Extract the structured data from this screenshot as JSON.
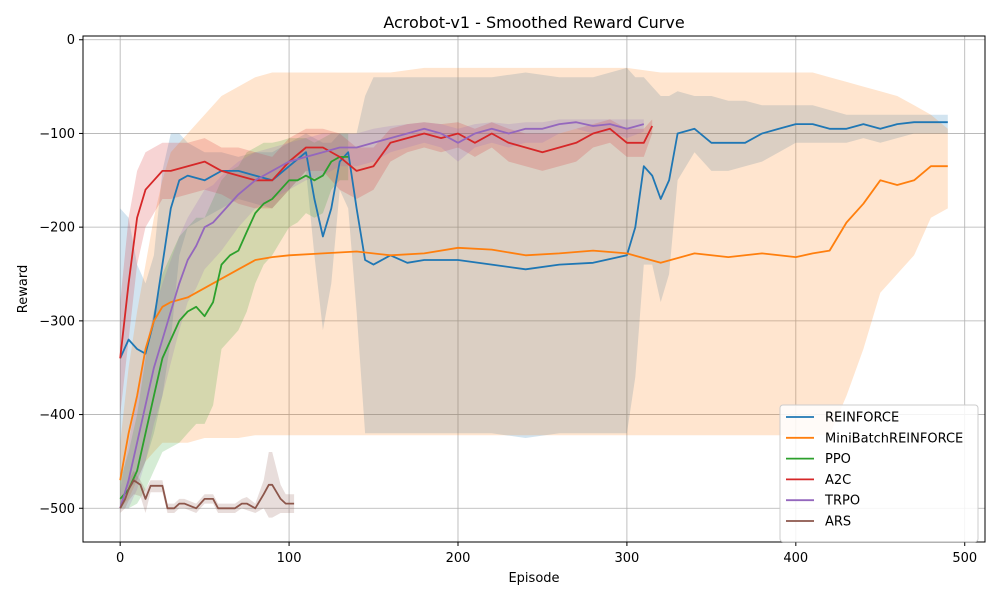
{
  "chart_data": {
    "type": "line",
    "title": "Acrobot-v1 - Smoothed Reward Curve",
    "xlabel": "Episode",
    "ylabel": "Reward",
    "xlim": [
      -22,
      512
    ],
    "ylim": [
      -536,
      4
    ],
    "xticks": [
      0,
      100,
      200,
      300,
      400,
      500
    ],
    "yticks": [
      0,
      -100,
      -200,
      -300,
      -400,
      -500
    ],
    "xtick_labels": [
      "0",
      "100",
      "200",
      "300",
      "400",
      "500"
    ],
    "ytick_labels": [
      "0",
      "−100",
      "−200",
      "−300",
      "−400",
      "−500"
    ],
    "grid": true,
    "legend_position": "lower-right",
    "series": [
      {
        "name": "REINFORCE",
        "color": "#1f77b4",
        "x": [
          0,
          5,
          10,
          15,
          20,
          25,
          30,
          35,
          40,
          50,
          60,
          70,
          80,
          90,
          100,
          110,
          115,
          120,
          125,
          130,
          135,
          140,
          145,
          150,
          160,
          170,
          180,
          200,
          220,
          240,
          260,
          280,
          300,
          305,
          310,
          315,
          320,
          325,
          330,
          340,
          350,
          360,
          370,
          380,
          390,
          400,
          410,
          420,
          430,
          440,
          450,
          460,
          470,
          480,
          490
        ],
        "y": [
          -340,
          -320,
          -330,
          -335,
          -300,
          -240,
          -180,
          -150,
          -145,
          -150,
          -140,
          -140,
          -145,
          -150,
          -135,
          -120,
          -170,
          -210,
          -180,
          -130,
          -120,
          -180,
          -235,
          -240,
          -230,
          -238,
          -235,
          -235,
          -240,
          -245,
          -240,
          -238,
          -230,
          -200,
          -135,
          -145,
          -170,
          -150,
          -100,
          -95,
          -110,
          -110,
          -110,
          -100,
          -95,
          -90,
          -90,
          -95,
          -95,
          -90,
          -95,
          -90,
          -88,
          -88,
          -88
        ],
        "upper": [
          -180,
          -190,
          -240,
          -260,
          -230,
          -140,
          -100,
          -100,
          -110,
          -120,
          -120,
          -125,
          -120,
          -120,
          -110,
          -100,
          -105,
          -110,
          -110,
          -100,
          -100,
          -100,
          -60,
          -40,
          -40,
          -40,
          -40,
          -40,
          -40,
          -35,
          -40,
          -40,
          -30,
          -40,
          -40,
          -50,
          -60,
          -60,
          -55,
          -60,
          -60,
          -65,
          -65,
          -70,
          -70,
          -70,
          -70,
          -75,
          -80,
          -80,
          -80,
          -80,
          -80,
          -80,
          -80
        ],
        "lower": [
          -500,
          -480,
          -470,
          -450,
          -420,
          -380,
          -320,
          -230,
          -200,
          -190,
          -180,
          -170,
          -175,
          -180,
          -160,
          -140,
          -230,
          -310,
          -260,
          -160,
          -180,
          -290,
          -420,
          -420,
          -420,
          -420,
          -420,
          -420,
          -420,
          -425,
          -420,
          -420,
          -420,
          -360,
          -240,
          -240,
          -280,
          -250,
          -150,
          -120,
          -140,
          -140,
          -135,
          -130,
          -120,
          -110,
          -110,
          -110,
          -110,
          -105,
          -110,
          -105,
          -100,
          -100,
          -100
        ]
      },
      {
        "name": "MiniBatchREINFORCE",
        "color": "#ff7f0e",
        "x": [
          0,
          5,
          10,
          15,
          20,
          25,
          30,
          40,
          50,
          60,
          70,
          80,
          90,
          100,
          120,
          140,
          160,
          180,
          200,
          220,
          240,
          260,
          280,
          300,
          320,
          340,
          360,
          380,
          400,
          410,
          420,
          430,
          440,
          450,
          460,
          470,
          480,
          490
        ],
        "y": [
          -470,
          -420,
          -380,
          -330,
          -300,
          -285,
          -280,
          -275,
          -265,
          -255,
          -245,
          -235,
          -232,
          -230,
          -228,
          -226,
          -230,
          -228,
          -222,
          -224,
          -230,
          -228,
          -225,
          -228,
          -238,
          -228,
          -232,
          -228,
          -232,
          -228,
          -225,
          -195,
          -175,
          -150,
          -155,
          -150,
          -135,
          -135
        ],
        "upper": [
          -430,
          -350,
          -290,
          -240,
          -190,
          -150,
          -120,
          -100,
          -80,
          -60,
          -50,
          -40,
          -35,
          -35,
          -35,
          -35,
          -35,
          -30,
          -30,
          -30,
          -30,
          -30,
          -30,
          -30,
          -35,
          -35,
          -35,
          -35,
          -35,
          -35,
          -40,
          -45,
          -50,
          -55,
          -60,
          -70,
          -80,
          -95
        ],
        "lower": [
          -500,
          -490,
          -470,
          -450,
          -440,
          -430,
          -430,
          -430,
          -425,
          -425,
          -425,
          -422,
          -422,
          -422,
          -422,
          -422,
          -422,
          -422,
          -422,
          -422,
          -422,
          -422,
          -422,
          -422,
          -422,
          -422,
          -422,
          -422,
          -422,
          -422,
          -422,
          -380,
          -330,
          -270,
          -250,
          -230,
          -190,
          -180
        ]
      },
      {
        "name": "PPO",
        "color": "#2ca02c",
        "x": [
          0,
          5,
          10,
          15,
          20,
          25,
          30,
          35,
          40,
          45,
          50,
          55,
          60,
          65,
          70,
          75,
          80,
          85,
          90,
          95,
          100,
          105,
          110,
          115,
          120,
          125,
          130,
          135
        ],
        "y": [
          -490,
          -480,
          -460,
          -420,
          -380,
          -340,
          -320,
          -300,
          -290,
          -285,
          -295,
          -280,
          -240,
          -230,
          -225,
          -205,
          -185,
          -175,
          -170,
          -160,
          -150,
          -150,
          -145,
          -150,
          -145,
          -130,
          -125,
          -125
        ],
        "upper": [
          -470,
          -440,
          -400,
          -340,
          -290,
          -250,
          -230,
          -210,
          -200,
          -190,
          -190,
          -170,
          -150,
          -140,
          -135,
          -120,
          -115,
          -110,
          -110,
          -108,
          -105,
          -105,
          -105,
          -110,
          -105,
          -100,
          -100,
          -100
        ],
        "lower": [
          -500,
          -500,
          -495,
          -480,
          -460,
          -440,
          -435,
          -430,
          -420,
          -410,
          -410,
          -390,
          -330,
          -320,
          -310,
          -290,
          -260,
          -240,
          -230,
          -215,
          -200,
          -195,
          -185,
          -190,
          -185,
          -160,
          -150,
          -150
        ]
      },
      {
        "name": "A2C",
        "color": "#d62728",
        "x": [
          0,
          5,
          10,
          15,
          20,
          25,
          30,
          40,
          50,
          60,
          70,
          80,
          90,
          100,
          110,
          120,
          130,
          140,
          150,
          160,
          170,
          180,
          190,
          200,
          210,
          220,
          230,
          240,
          250,
          260,
          270,
          280,
          290,
          300,
          310,
          315
        ],
        "y": [
          -340,
          -260,
          -190,
          -160,
          -150,
          -140,
          -140,
          -135,
          -130,
          -140,
          -145,
          -150,
          -150,
          -130,
          -115,
          -115,
          -125,
          -140,
          -135,
          -110,
          -105,
          -100,
          -105,
          -100,
          -110,
          -100,
          -110,
          -115,
          -120,
          -115,
          -110,
          -100,
          -95,
          -110,
          -110,
          -92
        ],
        "upper": [
          -280,
          -190,
          -140,
          -120,
          -115,
          -110,
          -110,
          -110,
          -105,
          -115,
          -115,
          -120,
          -125,
          -105,
          -95,
          -95,
          -100,
          -115,
          -115,
          -95,
          -90,
          -88,
          -90,
          -88,
          -95,
          -88,
          -95,
          -100,
          -100,
          -100,
          -95,
          -90,
          -85,
          -95,
          -95,
          -85
        ],
        "lower": [
          -400,
          -320,
          -240,
          -200,
          -185,
          -170,
          -170,
          -165,
          -160,
          -165,
          -175,
          -180,
          -180,
          -160,
          -140,
          -140,
          -160,
          -170,
          -160,
          -130,
          -120,
          -115,
          -120,
          -115,
          -125,
          -115,
          -130,
          -135,
          -140,
          -135,
          -130,
          -115,
          -110,
          -125,
          -125,
          -100
        ]
      },
      {
        "name": "TRPO",
        "color": "#9467bd",
        "x": [
          0,
          5,
          10,
          15,
          20,
          25,
          30,
          35,
          40,
          45,
          50,
          55,
          60,
          70,
          80,
          90,
          100,
          110,
          120,
          130,
          140,
          150,
          160,
          170,
          180,
          190,
          200,
          210,
          220,
          230,
          240,
          250,
          260,
          270,
          280,
          290,
          300,
          310
        ],
        "y": [
          -500,
          -470,
          -430,
          -390,
          -350,
          -320,
          -290,
          -260,
          -235,
          -220,
          -200,
          -195,
          -185,
          -165,
          -150,
          -140,
          -130,
          -125,
          -120,
          -115,
          -115,
          -110,
          -105,
          -100,
          -95,
          -100,
          -110,
          -100,
          -95,
          -100,
          -95,
          -95,
          -90,
          -88,
          -92,
          -90,
          -95,
          -90
        ],
        "upper": [
          -480,
          -430,
          -380,
          -330,
          -290,
          -260,
          -235,
          -210,
          -190,
          -175,
          -160,
          -155,
          -145,
          -130,
          -120,
          -115,
          -110,
          -105,
          -100,
          -100,
          -100,
          -95,
          -92,
          -90,
          -88,
          -90,
          -95,
          -90,
          -88,
          -90,
          -88,
          -88,
          -85,
          -85,
          -85,
          -85,
          -85,
          -85
        ],
        "lower": [
          -500,
          -500,
          -480,
          -450,
          -410,
          -380,
          -345,
          -310,
          -280,
          -265,
          -245,
          -235,
          -225,
          -200,
          -180,
          -170,
          -160,
          -150,
          -145,
          -135,
          -135,
          -130,
          -120,
          -115,
          -110,
          -115,
          -130,
          -115,
          -110,
          -115,
          -110,
          -110,
          -100,
          -95,
          -100,
          -98,
          -105,
          -98
        ]
      },
      {
        "name": "ARS",
        "color": "#8c564b",
        "x": [
          0,
          3,
          5,
          8,
          12,
          15,
          18,
          25,
          28,
          32,
          35,
          38,
          45,
          50,
          55,
          58,
          62,
          68,
          72,
          75,
          80,
          85,
          88,
          90,
          95,
          98,
          100,
          103
        ],
        "y": [
          -500,
          -490,
          -480,
          -470,
          -475,
          -490,
          -476,
          -476,
          -500,
          -500,
          -495,
          -495,
          -500,
          -490,
          -490,
          -500,
          -500,
          -500,
          -495,
          -495,
          -500,
          -485,
          -475,
          -475,
          -490,
          -495,
          -495,
          -495
        ],
        "upper": [
          -495,
          -480,
          -470,
          -460,
          -470,
          -480,
          -470,
          -470,
          -495,
          -495,
          -490,
          -490,
          -495,
          -485,
          -485,
          -495,
          -495,
          -495,
          -490,
          -488,
          -495,
          -470,
          -440,
          -440,
          -475,
          -485,
          -485,
          -485
        ],
        "lower": [
          -505,
          -500,
          -492,
          -485,
          -487,
          -505,
          -483,
          -483,
          -505,
          -505,
          -500,
          -500,
          -505,
          -495,
          -495,
          -505,
          -505,
          -505,
          -500,
          -502,
          -505,
          -500,
          -510,
          -510,
          -505,
          -505,
          -505,
          -505
        ]
      }
    ]
  }
}
